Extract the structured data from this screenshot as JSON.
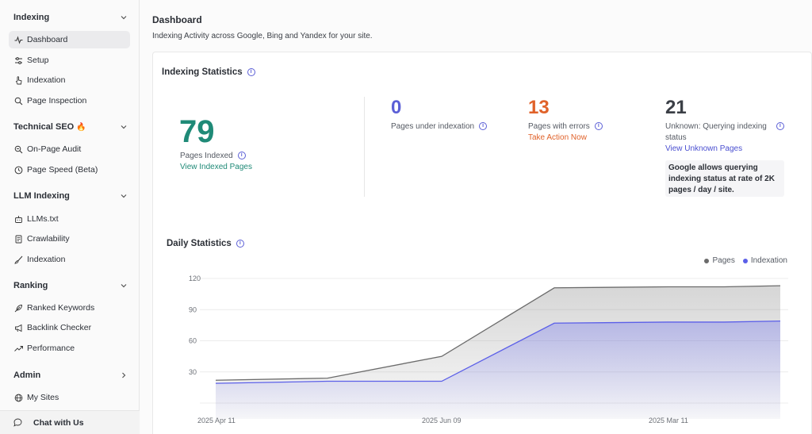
{
  "sidebar": {
    "sections": [
      {
        "title": "Indexing",
        "expanded": true,
        "items": [
          {
            "label": "Dashboard",
            "icon": "activity-icon",
            "active": true
          },
          {
            "label": "Setup",
            "icon": "sliders-icon"
          },
          {
            "label": "Indexation",
            "icon": "hand-pointer-icon"
          },
          {
            "label": "Page Inspection",
            "icon": "search-icon"
          }
        ]
      },
      {
        "title": "Technical SEO",
        "title_emoji": "🔥",
        "expanded": true,
        "items": [
          {
            "label": "On-Page Audit",
            "icon": "search-audit-icon"
          },
          {
            "label": "Page Speed (Beta)",
            "icon": "clock-icon"
          }
        ]
      },
      {
        "title": "LLM Indexing",
        "expanded": true,
        "items": [
          {
            "label": "LLMs.txt",
            "icon": "bot-icon"
          },
          {
            "label": "Crawlability",
            "icon": "document-icon"
          },
          {
            "label": "Indexation",
            "icon": "brush-icon"
          }
        ]
      },
      {
        "title": "Ranking",
        "expanded": true,
        "items": [
          {
            "label": "Ranked Keywords",
            "icon": "feather-icon"
          },
          {
            "label": "Backlink Checker",
            "icon": "megaphone-icon"
          },
          {
            "label": "Performance",
            "icon": "trend-up-icon"
          }
        ]
      },
      {
        "title": "Admin",
        "expanded": false,
        "items": [
          {
            "label": "My Sites",
            "icon": "globe-icon"
          }
        ]
      }
    ],
    "chat_label": "Chat with Us"
  },
  "header": {
    "title": "Dashboard",
    "subtitle": "Indexing Activity across Google, Bing and Yandex for your site."
  },
  "stats": {
    "title": "Indexing Statistics",
    "indexed": {
      "value": "79",
      "label": "Pages Indexed",
      "link": "View Indexed Pages",
      "color": "#1f8a77"
    },
    "under_indexation": {
      "value": "0",
      "label": "Pages under indexation",
      "color": "#5b5fd6"
    },
    "errors": {
      "value": "13",
      "label": "Pages with errors",
      "link": "Take Action Now",
      "color": "#e0622a"
    },
    "unknown": {
      "value": "21",
      "label_line1": "Unknown: Querying indexing",
      "label_line2": "status",
      "link": "View Unknown Pages",
      "color": "#3b3f46",
      "link_color": "#4a4fd0"
    },
    "note_line1": "Google allows querying",
    "note_line2": "indexing status at rate of 2K",
    "note_line3": "pages / day / site."
  },
  "daily": {
    "title": "Daily Statistics"
  },
  "chart_data": {
    "type": "area",
    "x": [
      "2025 Apr 11",
      "",
      "2025 Jun 09",
      "",
      "",
      "2025 Mar 11",
      ""
    ],
    "x_tick_labels": [
      "2025 Apr 11",
      "2025 Jun 09",
      "2025 Mar 11"
    ],
    "series": [
      {
        "name": "Pages",
        "color": "#6b6b6b",
        "values": [
          22,
          24,
          45,
          111,
          112,
          112,
          113
        ]
      },
      {
        "name": "Indexation",
        "color": "#5b5fe8",
        "values": [
          19,
          21,
          21,
          77,
          78,
          78,
          79
        ]
      }
    ],
    "ylim": [
      0,
      120
    ],
    "yticks": [
      0,
      30,
      60,
      90,
      120
    ],
    "grid": true,
    "legend": "top-right"
  }
}
